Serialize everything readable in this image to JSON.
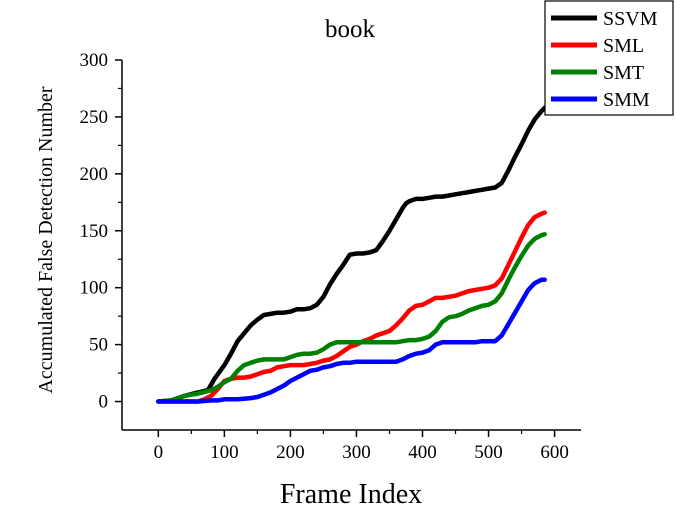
{
  "chart_data": {
    "type": "line",
    "title": "book",
    "xlabel": "Frame Index",
    "ylabel": "Accumulated False Detection Number",
    "xlim": [
      -55,
      640
    ],
    "ylim": [
      -25,
      300
    ],
    "xticks": [
      0,
      100,
      200,
      300,
      400,
      500,
      600
    ],
    "yticks": [
      0,
      50,
      100,
      150,
      200,
      250,
      300
    ],
    "grid": false,
    "legend_position": "top-right",
    "series": [
      {
        "name": "SSVM",
        "color": "#000000",
        "x": [
          0,
          20,
          40,
          60,
          75,
          85,
          100,
          110,
          120,
          130,
          140,
          150,
          160,
          170,
          180,
          190,
          200,
          210,
          220,
          230,
          240,
          250,
          260,
          270,
          280,
          290,
          300,
          310,
          320,
          330,
          340,
          350,
          360,
          370,
          375,
          380,
          390,
          400,
          410,
          420,
          430,
          440,
          450,
          460,
          470,
          480,
          490,
          500,
          510,
          520,
          530,
          540,
          550,
          560,
          570,
          580,
          585
        ],
        "y": [
          0,
          1,
          5,
          8,
          10,
          20,
          32,
          42,
          53,
          60,
          67,
          72,
          76,
          77,
          78,
          78,
          79,
          81,
          81,
          82,
          85,
          92,
          103,
          112,
          120,
          129,
          130,
          130,
          131,
          133,
          141,
          150,
          160,
          170,
          174,
          176,
          178,
          178,
          179,
          180,
          180,
          181,
          182,
          183,
          184,
          185,
          186,
          187,
          188,
          192,
          203,
          215,
          226,
          238,
          248,
          255,
          258
        ]
      },
      {
        "name": "SML",
        "color": "#ff0000",
        "x": [
          0,
          20,
          40,
          60,
          70,
          80,
          90,
          100,
          110,
          120,
          130,
          140,
          150,
          160,
          170,
          180,
          190,
          200,
          210,
          220,
          230,
          240,
          250,
          260,
          270,
          280,
          290,
          300,
          310,
          320,
          330,
          340,
          350,
          360,
          370,
          380,
          390,
          400,
          410,
          420,
          430,
          440,
          450,
          460,
          470,
          480,
          490,
          500,
          510,
          520,
          530,
          540,
          550,
          560,
          570,
          580,
          585
        ],
        "y": [
          0,
          0,
          0,
          0,
          2,
          5,
          11,
          18,
          20,
          21,
          21,
          22,
          24,
          26,
          27,
          30,
          31,
          32,
          32,
          32,
          33,
          34,
          36,
          37,
          40,
          44,
          48,
          50,
          53,
          55,
          58,
          60,
          62,
          67,
          73,
          80,
          84,
          85,
          88,
          91,
          91,
          92,
          93,
          95,
          97,
          98,
          99,
          100,
          102,
          108,
          120,
          132,
          144,
          155,
          162,
          165,
          166
        ]
      },
      {
        "name": "SMT",
        "color": "#008000",
        "x": [
          0,
          20,
          40,
          60,
          80,
          90,
          100,
          110,
          120,
          130,
          140,
          150,
          160,
          170,
          180,
          190,
          200,
          210,
          220,
          230,
          240,
          250,
          260,
          270,
          280,
          290,
          300,
          310,
          320,
          330,
          340,
          350,
          360,
          370,
          380,
          390,
          400,
          410,
          420,
          430,
          440,
          450,
          460,
          470,
          480,
          490,
          500,
          510,
          520,
          530,
          540,
          550,
          560,
          570,
          580,
          585
        ],
        "y": [
          0,
          1,
          5,
          7,
          10,
          13,
          17,
          20,
          27,
          32,
          34,
          36,
          37,
          37,
          37,
          37,
          39,
          41,
          42,
          42,
          43,
          46,
          50,
          52,
          52,
          52,
          52,
          52,
          52,
          52,
          52,
          52,
          52,
          53,
          54,
          54,
          55,
          57,
          62,
          70,
          74,
          75,
          77,
          80,
          82,
          84,
          85,
          88,
          95,
          107,
          118,
          128,
          137,
          143,
          146,
          147
        ]
      },
      {
        "name": "SMM",
        "color": "#0000ff",
        "x": [
          0,
          20,
          40,
          60,
          80,
          90,
          100,
          120,
          140,
          150,
          160,
          170,
          180,
          190,
          200,
          210,
          220,
          230,
          240,
          250,
          260,
          270,
          280,
          290,
          300,
          310,
          320,
          330,
          340,
          350,
          360,
          370,
          380,
          390,
          400,
          410,
          420,
          430,
          440,
          450,
          460,
          470,
          480,
          490,
          500,
          510,
          520,
          530,
          540,
          550,
          560,
          570,
          580,
          585
        ],
        "y": [
          0,
          0,
          0,
          0,
          1,
          1,
          2,
          2,
          3,
          4,
          6,
          8,
          11,
          14,
          18,
          21,
          24,
          27,
          28,
          30,
          31,
          33,
          34,
          34,
          35,
          35,
          35,
          35,
          35,
          35,
          35,
          37,
          40,
          42,
          43,
          45,
          50,
          52,
          52,
          52,
          52,
          52,
          52,
          53,
          53,
          53,
          58,
          68,
          78,
          88,
          98,
          104,
          107,
          107
        ]
      }
    ]
  }
}
